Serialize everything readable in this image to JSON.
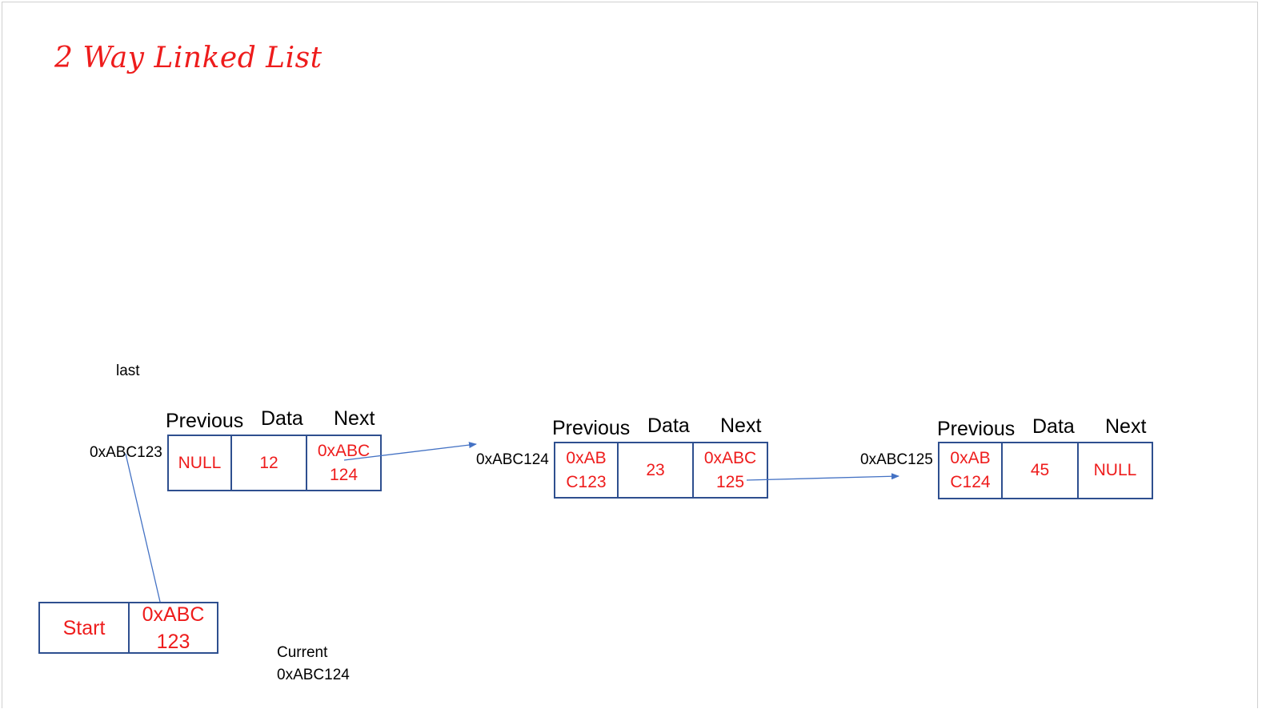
{
  "title": "2 Way Linked List",
  "labels": {
    "last": "last",
    "current": "Current",
    "current_addr": "0xABC124"
  },
  "start_node": {
    "label": "Start",
    "value": "0xABC\n123"
  },
  "nodes": [
    {
      "address": "0xABC123",
      "headers": {
        "previous": "Previous",
        "data": "Data",
        "next": "Next"
      },
      "previous": "NULL",
      "data": "12",
      "next": "0xABC\n124"
    },
    {
      "address": "0xABC124",
      "headers": {
        "previous": "Previous",
        "data": "Data",
        "next": "Next"
      },
      "previous": "0xAB\nC123",
      "data": "23",
      "next": "0xABC\n125"
    },
    {
      "address": "0xABC125",
      "headers": {
        "previous": "Previous",
        "data": "Data",
        "next": "Next"
      },
      "previous": "0xAB\nC124",
      "data": "45",
      "next": "NULL"
    }
  ],
  "colors": {
    "title": "#ee1c1c",
    "cell_text": "#ee1c1c",
    "border": "#2e4f8f",
    "arrow": "#4472c4"
  }
}
